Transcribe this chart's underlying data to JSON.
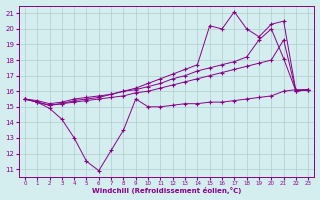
{
  "xlabel": "Windchill (Refroidissement éolien,°C)",
  "bg_color": "#d4eef0",
  "line_color": "#880088",
  "xlim": [
    -0.5,
    23.5
  ],
  "ylim": [
    10.5,
    21.5
  ],
  "xticks": [
    0,
    1,
    2,
    3,
    4,
    5,
    6,
    7,
    8,
    9,
    10,
    11,
    12,
    13,
    14,
    15,
    16,
    17,
    18,
    19,
    20,
    21,
    22,
    23
  ],
  "yticks": [
    11,
    12,
    13,
    14,
    15,
    16,
    17,
    18,
    19,
    20,
    21
  ],
  "grid_color": "#b0ccd0",
  "series1_x": [
    0,
    1,
    2,
    3,
    4,
    5,
    6,
    7,
    8,
    9,
    10,
    11,
    12,
    13,
    14,
    15,
    16,
    17,
    18,
    19,
    20,
    21,
    22,
    23
  ],
  "series1_y": [
    15.5,
    15.3,
    14.9,
    14.2,
    13.0,
    11.5,
    10.9,
    12.2,
    13.5,
    15.5,
    15.0,
    15.0,
    15.1,
    15.2,
    15.2,
    15.3,
    15.3,
    15.4,
    15.5,
    15.6,
    15.7,
    16.0,
    16.1,
    16.1
  ],
  "series2_x": [
    0,
    1,
    2,
    3,
    4,
    5,
    6,
    7,
    8,
    9,
    10,
    11,
    12,
    13,
    14,
    15,
    16,
    17,
    18,
    19,
    20,
    21,
    22,
    23
  ],
  "series2_y": [
    15.5,
    15.4,
    15.2,
    15.3,
    15.5,
    15.6,
    15.7,
    15.8,
    16.0,
    16.1,
    16.3,
    16.5,
    16.8,
    17.0,
    17.3,
    17.5,
    17.7,
    17.9,
    18.2,
    19.3,
    20.0,
    18.1,
    16.0,
    16.1
  ],
  "series3_x": [
    0,
    1,
    2,
    3,
    4,
    5,
    6,
    7,
    8,
    9,
    10,
    11,
    12,
    13,
    14,
    15,
    16,
    17,
    18,
    19,
    20,
    21,
    22,
    23
  ],
  "series3_y": [
    15.5,
    15.3,
    15.1,
    15.2,
    15.4,
    15.5,
    15.6,
    15.8,
    16.0,
    16.2,
    16.5,
    16.8,
    17.1,
    17.4,
    17.7,
    20.2,
    20.0,
    21.1,
    20.0,
    19.5,
    20.3,
    20.5,
    16.0,
    16.1
  ],
  "series4_x": [
    0,
    1,
    2,
    3,
    4,
    5,
    6,
    7,
    8,
    9,
    10,
    11,
    12,
    13,
    14,
    15,
    16,
    17,
    18,
    19,
    20,
    21,
    22,
    23
  ],
  "series4_y": [
    15.5,
    15.3,
    15.1,
    15.2,
    15.3,
    15.4,
    15.5,
    15.6,
    15.7,
    15.9,
    16.0,
    16.2,
    16.4,
    16.6,
    16.8,
    17.0,
    17.2,
    17.4,
    17.6,
    17.8,
    18.0,
    19.3,
    16.0,
    16.1
  ]
}
